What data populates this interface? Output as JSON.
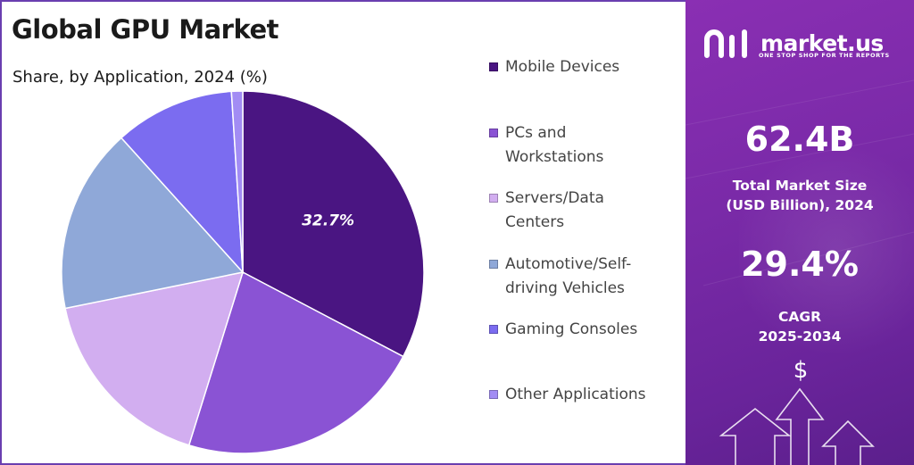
{
  "header": {
    "title": "Global GPU Market",
    "subtitle": "Share, by Application, 2024 (%)"
  },
  "chart_data": {
    "type": "pie",
    "title": "Global GPU Market",
    "subtitle": "Share, by Application, 2024 (%)",
    "slices": [
      {
        "label": "Mobile Devices",
        "value": 32.7,
        "color": "#4a1582",
        "data_label": "32.7%"
      },
      {
        "label": "PCs and Workstations",
        "value": 22.1,
        "color": "#8a53d4",
        "data_label": ""
      },
      {
        "label": "Servers/Data Centers",
        "value": 17.0,
        "color": "#d2aef0",
        "data_label": ""
      },
      {
        "label": "Automotive/Self-driving Vehicles",
        "value": 16.5,
        "color": "#8fa8d8",
        "data_label": ""
      },
      {
        "label": "Gaming Consoles",
        "value": 10.7,
        "color": "#7b6cf0",
        "data_label": ""
      },
      {
        "label": "Other Applications",
        "value": 1.0,
        "color": "#a28cf4",
        "data_label": ""
      }
    ],
    "legend": {
      "position": "right",
      "entries": [
        {
          "lines": [
            "Mobile Devices"
          ],
          "color": "#4a1582"
        },
        {
          "lines": [
            "PCs and",
            "Workstations"
          ],
          "color": "#8a53d4"
        },
        {
          "lines": [
            "Servers/Data",
            "Centers"
          ],
          "color": "#d2aef0"
        },
        {
          "lines": [
            "Automotive/Self-",
            "driving Vehicles"
          ],
          "color": "#8fa8d8"
        },
        {
          "lines": [
            "Gaming Consoles"
          ],
          "color": "#7b6cf0"
        },
        {
          "lines": [
            "Other Applications"
          ],
          "color": "#a28cf4"
        }
      ]
    }
  },
  "brand": {
    "name": "market.us",
    "tagline": "ONE STOP SHOP FOR THE REPORTS"
  },
  "stats": {
    "market_size_value": "62.4B",
    "market_size_label_1": "Total Market Size",
    "market_size_label_2": "(USD Billion), 2024",
    "cagr_value": "29.4%",
    "cagr_label_1": "CAGR",
    "cagr_label_2": "2025-2034"
  },
  "icons": {
    "currency": "$",
    "logo": "market-us-logo-icon"
  },
  "colors": {
    "panel_dark": "#5b1f8c",
    "panel_light": "#8a2fb3",
    "border": "#6a3fb0"
  }
}
